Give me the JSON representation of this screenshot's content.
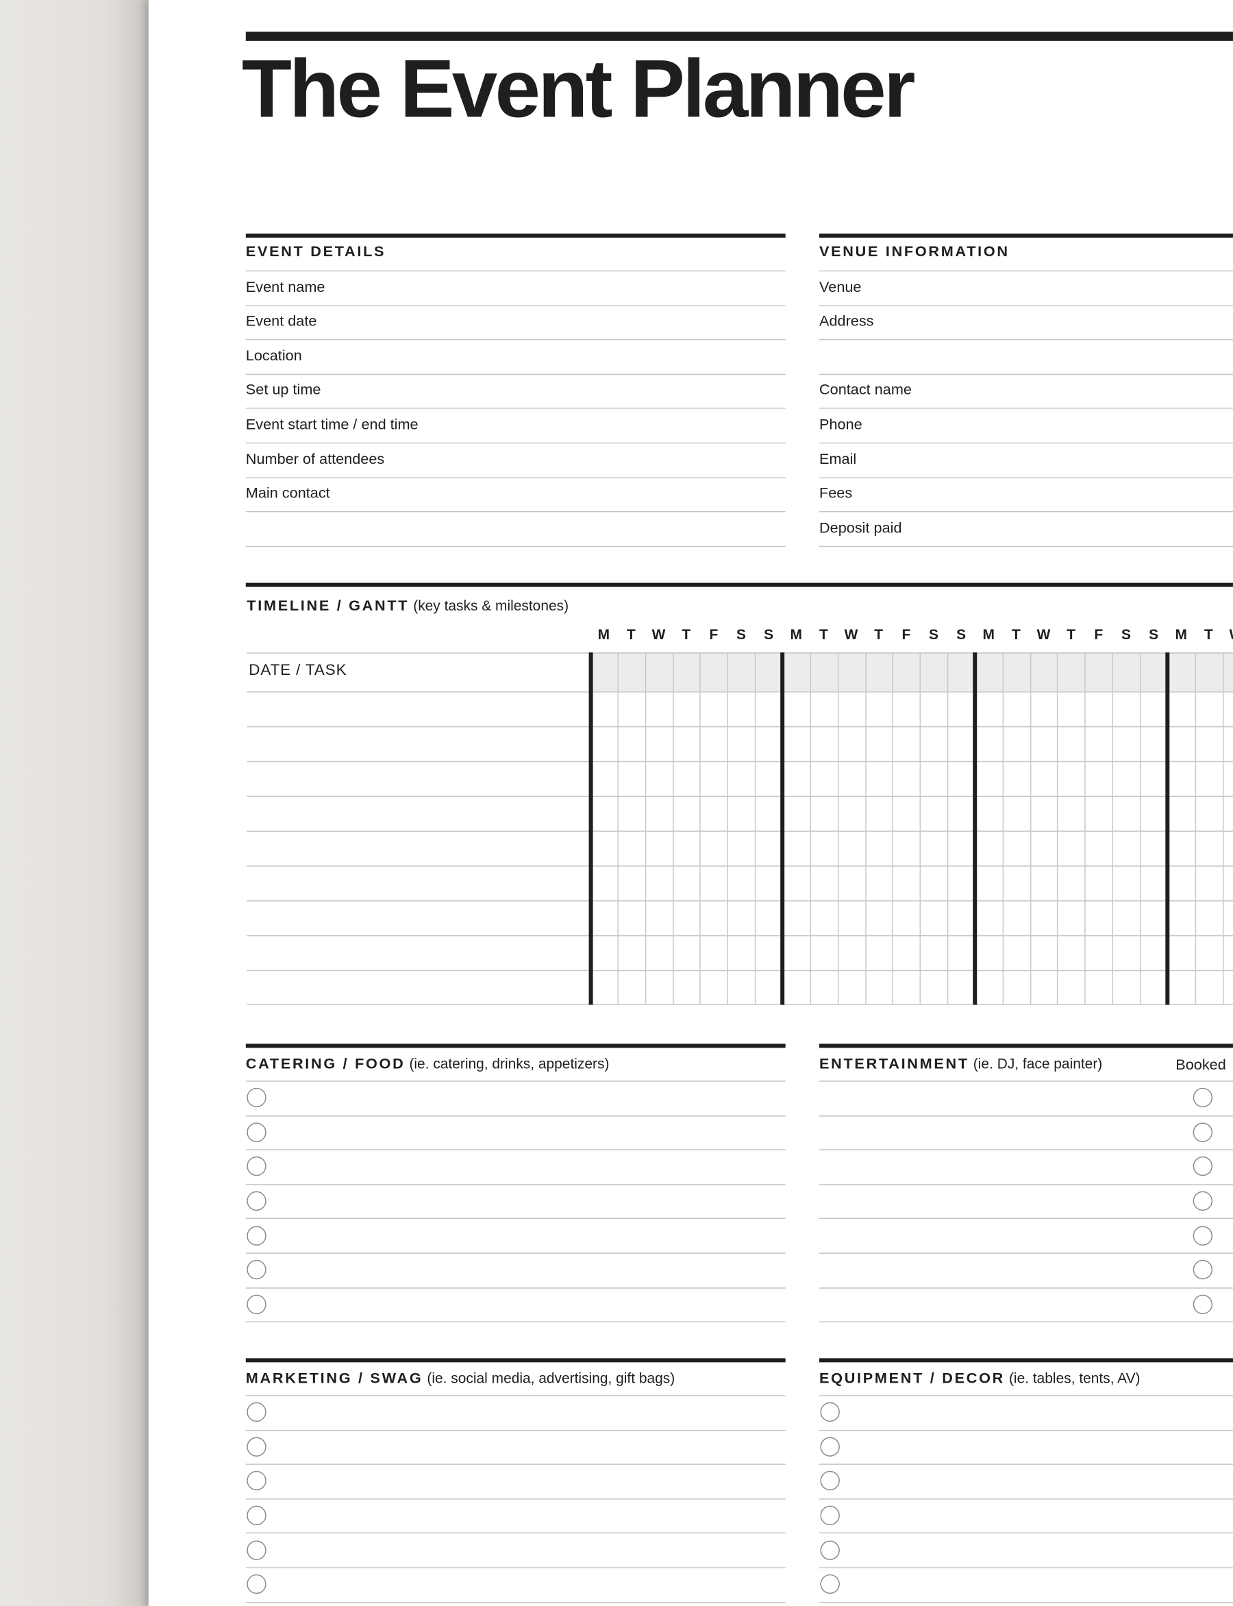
{
  "title": "The Event Planner",
  "event_details": {
    "header": "EVENT DETAILS",
    "fields": [
      "Event name",
      "Event date",
      "Location",
      "Set up time",
      "Event start time / end time",
      "Number of attendees",
      "Main contact",
      ""
    ]
  },
  "venue": {
    "header": "VENUE INFORMATION",
    "fields": [
      "Venue",
      "Address",
      "",
      "Contact name",
      "Phone",
      "Email",
      "Fees",
      "Deposit paid"
    ]
  },
  "timeline": {
    "header": "TIMELINE / GANTT",
    "subheader": "(key tasks & milestones)",
    "column_label": "DATE / TASK",
    "days": [
      "M",
      "T",
      "W",
      "T",
      "F",
      "S",
      "S",
      "M",
      "T",
      "W",
      "T",
      "F",
      "S",
      "S",
      "M",
      "T",
      "W",
      "T",
      "F",
      "S",
      "S",
      "M",
      "T",
      "W"
    ]
  },
  "catering": {
    "header": "CATERING / FOOD",
    "subheader": "(ie. catering, drinks, appetizers)"
  },
  "entertainment": {
    "header": "ENTERTAINMENT",
    "subheader": "(ie. DJ, face painter)",
    "booked_label": "Booked"
  },
  "marketing": {
    "header": "MARKETING / SWAG",
    "subheader": "(ie. social media, advertising, gift bags)"
  },
  "equipment": {
    "header": "EQUIPMENT / DECOR",
    "subheader": "(ie. tables, tents, AV)"
  },
  "colors": {
    "ink": "#1e1e1e",
    "rule": "#c4c4c4",
    "gantt_header": "#ececec"
  }
}
